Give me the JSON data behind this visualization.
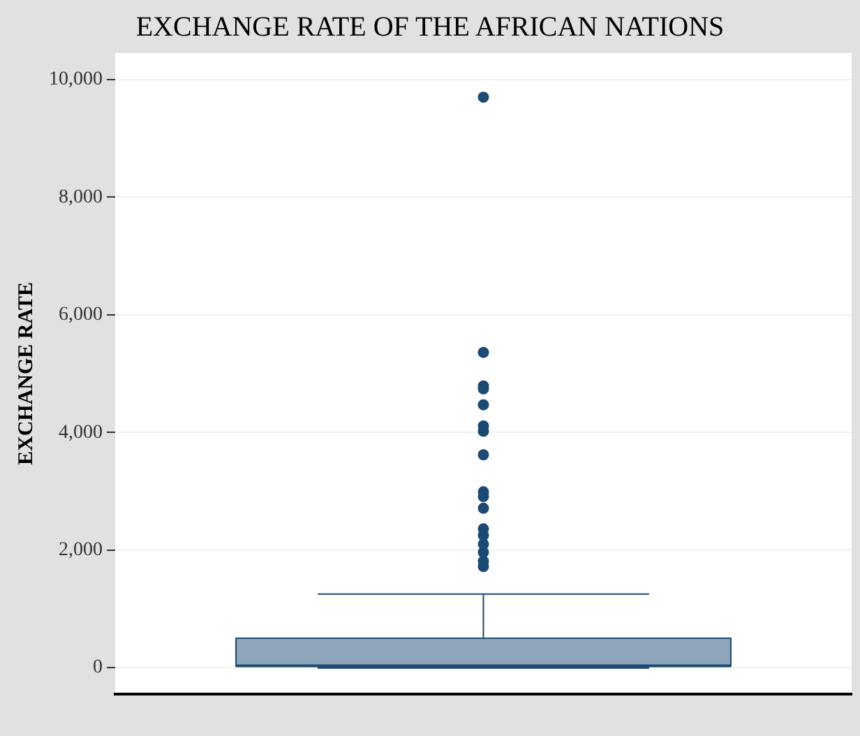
{
  "chart_data": {
    "type": "box",
    "title": "EXCHANGE RATE OF THE AFRICAN NATIONS",
    "ylabel": "EXCHANGE RATE",
    "categories": [
      null
    ],
    "boxes": [
      {
        "low": 10,
        "q1": 25,
        "median": 30,
        "q3": 500,
        "high": 1250,
        "outliers": [
          9700,
          5360,
          4790,
          4740,
          4470,
          4110,
          4020,
          3620,
          2990,
          2910,
          2710,
          2360,
          2250,
          2100,
          1960,
          1810,
          1720
        ]
      }
    ],
    "color": "#8fa5b9",
    "ylim": [
      -450,
      10450
    ],
    "yticks": [
      {
        "value": 0,
        "label": "0"
      },
      {
        "value": 2000,
        "label": "2,000"
      },
      {
        "value": 4000,
        "label": "4,000"
      },
      {
        "value": 6000,
        "label": "6,000"
      },
      {
        "value": 8000,
        "label": "8,000"
      },
      {
        "value": 10000,
        "label": "10,000"
      }
    ],
    "grid": "y",
    "tick_labels": "y"
  }
}
